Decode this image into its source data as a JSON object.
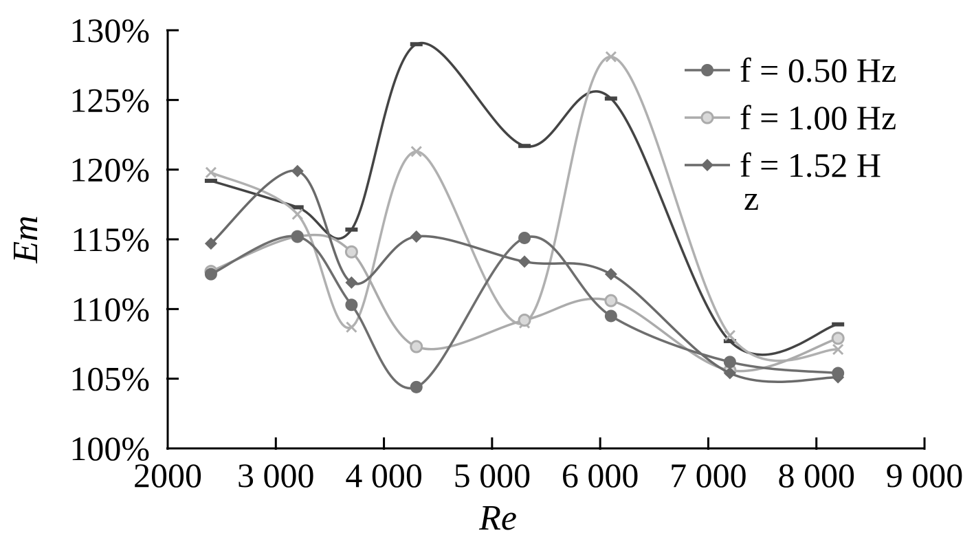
{
  "chart_data": {
    "type": "line",
    "xlabel": "Re",
    "ylabel": "Em",
    "xlim": [
      2000,
      9000
    ],
    "ylim": [
      100,
      130
    ],
    "x_ticks": [
      2000,
      3000,
      4000,
      5000,
      6000,
      7000,
      8000,
      9000
    ],
    "x_tick_labels": [
      "2000",
      "3 000",
      "4 000",
      "5 000",
      "6 000",
      "7 000",
      "8 000",
      "9 000"
    ],
    "y_ticks": [
      100,
      105,
      110,
      115,
      120,
      125,
      130
    ],
    "y_tick_labels": [
      "100%",
      "105%",
      "110%",
      "115%",
      "120%",
      "125%",
      "130%"
    ],
    "legend_position": "top-right",
    "series": [
      {
        "name": "f = 0.50 Hz",
        "color": "#6e6e6e",
        "marker": "circle",
        "points": [
          [
            2400,
            112.5
          ],
          [
            3200,
            115.2
          ],
          [
            3700,
            110.3
          ],
          [
            4300,
            104.4
          ],
          [
            5300,
            115.1
          ],
          [
            6100,
            109.5
          ],
          [
            7200,
            106.2
          ],
          [
            8200,
            105.4
          ]
        ]
      },
      {
        "name": "f = 1.00 Hz",
        "color": "#ababab",
        "marker": "circle-open",
        "points": [
          [
            2400,
            112.7
          ],
          [
            3200,
            115.2
          ],
          [
            3700,
            114.1
          ],
          [
            4300,
            107.3
          ],
          [
            5300,
            109.2
          ],
          [
            6100,
            110.6
          ],
          [
            7200,
            105.6
          ],
          [
            8200,
            107.9
          ]
        ]
      },
      {
        "name": "f = 1.52 Hz",
        "legend_lines": [
          "f = 1.52 H",
          "z"
        ],
        "color": "#6a6a6a",
        "marker": "diamond",
        "points": [
          [
            2400,
            114.7
          ],
          [
            3200,
            119.9
          ],
          [
            3700,
            111.9
          ],
          [
            4300,
            115.2
          ],
          [
            5300,
            113.4
          ],
          [
            6100,
            112.5
          ],
          [
            7200,
            105.4
          ],
          [
            8200,
            105.1
          ]
        ]
      },
      {
        "color": "#444444",
        "marker": "dash",
        "points": [
          [
            2400,
            119.2
          ],
          [
            3200,
            117.3
          ],
          [
            3700,
            115.7
          ],
          [
            4300,
            129.0
          ],
          [
            5300,
            121.7
          ],
          [
            6100,
            125.1
          ],
          [
            7200,
            107.7
          ],
          [
            8200,
            108.9
          ]
        ]
      },
      {
        "color": "#b0b0b0",
        "marker": "x",
        "points": [
          [
            2400,
            119.8
          ],
          [
            3200,
            116.8
          ],
          [
            3700,
            108.7
          ],
          [
            4300,
            121.3
          ],
          [
            5300,
            109.0
          ],
          [
            6100,
            128.1
          ],
          [
            7200,
            108.1
          ],
          [
            8200,
            107.1
          ]
        ]
      }
    ]
  }
}
